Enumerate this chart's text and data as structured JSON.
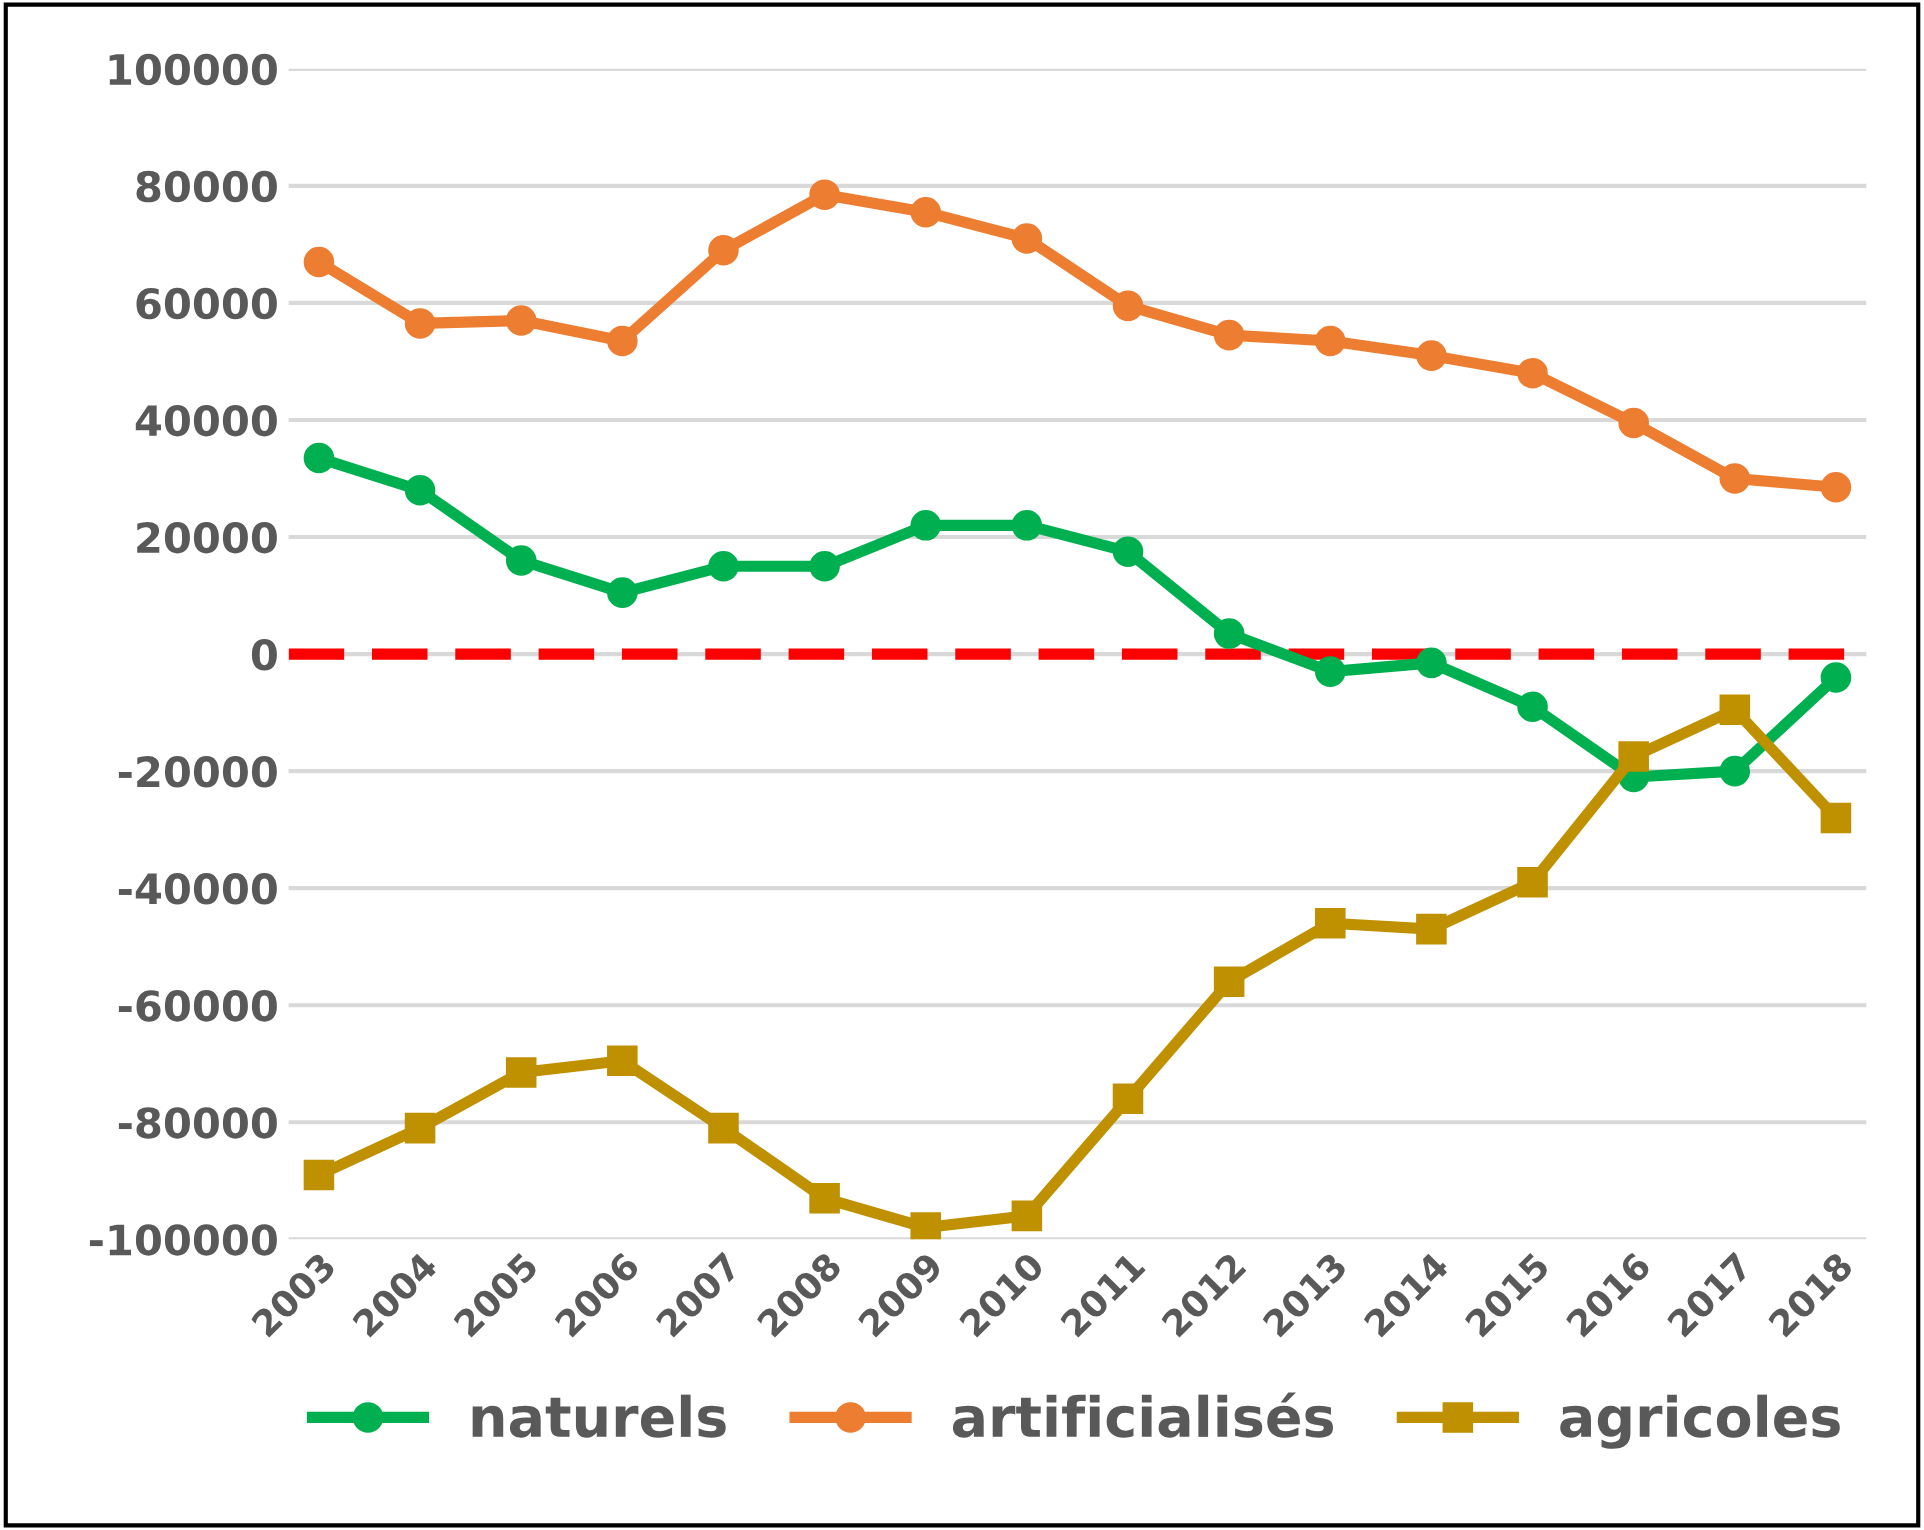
{
  "chart_data": {
    "type": "line",
    "categories": [
      "2003",
      "2004",
      "2005",
      "2006",
      "2007",
      "2008",
      "2009",
      "2010",
      "2011",
      "2012",
      "2013",
      "2014",
      "2015",
      "2016",
      "2017",
      "2018"
    ],
    "series": [
      {
        "name": "naturels",
        "color": "#00b050",
        "marker": "circle",
        "values": [
          33500,
          28000,
          16000,
          10500,
          15000,
          15000,
          22000,
          22000,
          17500,
          3500,
          -3000,
          -1500,
          -9000,
          -21000,
          -20000,
          -4000
        ]
      },
      {
        "name": "artificialisés",
        "color": "#ed7d31",
        "marker": "circle",
        "values": [
          67000,
          56500,
          57000,
          53500,
          69000,
          78500,
          75500,
          71000,
          59500,
          54500,
          53500,
          51000,
          48000,
          39500,
          30000,
          28500
        ]
      },
      {
        "name": "agricoles",
        "color": "#bf9000",
        "marker": "square",
        "values": [
          -89000,
          -81000,
          -71500,
          -69500,
          -81000,
          -93000,
          -98000,
          -96000,
          -76000,
          -56000,
          -46000,
          -47000,
          -39000,
          -17500,
          -9500,
          -28000
        ]
      }
    ],
    "ylim": [
      -100000,
      100000
    ],
    "yticks": [
      -100000,
      -80000,
      -60000,
      -40000,
      -20000,
      0,
      20000,
      40000,
      60000,
      80000,
      100000
    ],
    "grid": "y",
    "legend": "bottom",
    "ref_lines": [
      {
        "axis": "y",
        "value": 0,
        "color": "#ff0000",
        "line_style": "dashed"
      }
    ]
  }
}
